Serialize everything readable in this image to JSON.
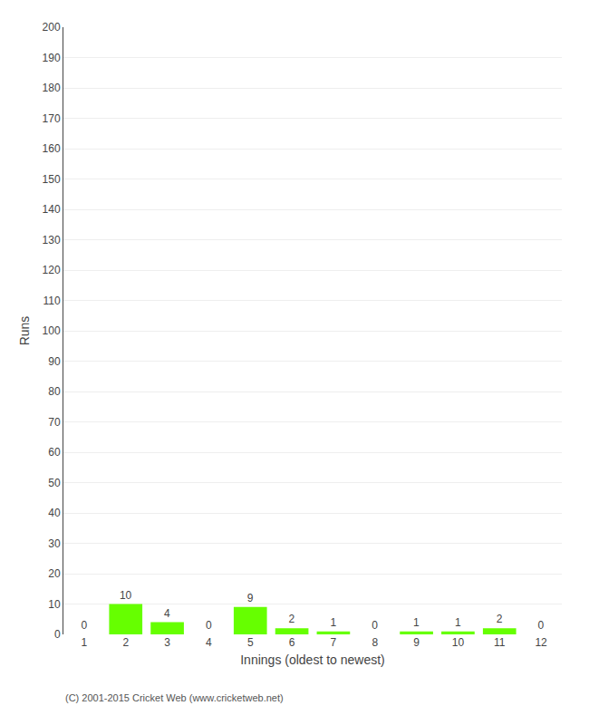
{
  "chart_data": {
    "type": "bar",
    "categories": [
      "1",
      "2",
      "3",
      "4",
      "5",
      "6",
      "7",
      "8",
      "9",
      "10",
      "11",
      "12"
    ],
    "values": [
      0,
      10,
      4,
      0,
      9,
      2,
      1,
      0,
      1,
      1,
      2,
      0
    ],
    "color": "#66ff00",
    "xlabel": "Innings (oldest to newest)",
    "ylabel": "Runs",
    "ylim": [
      0,
      200
    ],
    "yticks": [
      0,
      10,
      20,
      30,
      40,
      50,
      60,
      70,
      80,
      90,
      100,
      110,
      120,
      130,
      140,
      150,
      160,
      170,
      180,
      190,
      200
    ],
    "grid": true,
    "data_labels": true,
    "annotations": [
      "(C) 2001-2015 Cricket Web (www.cricketweb.net)"
    ]
  }
}
